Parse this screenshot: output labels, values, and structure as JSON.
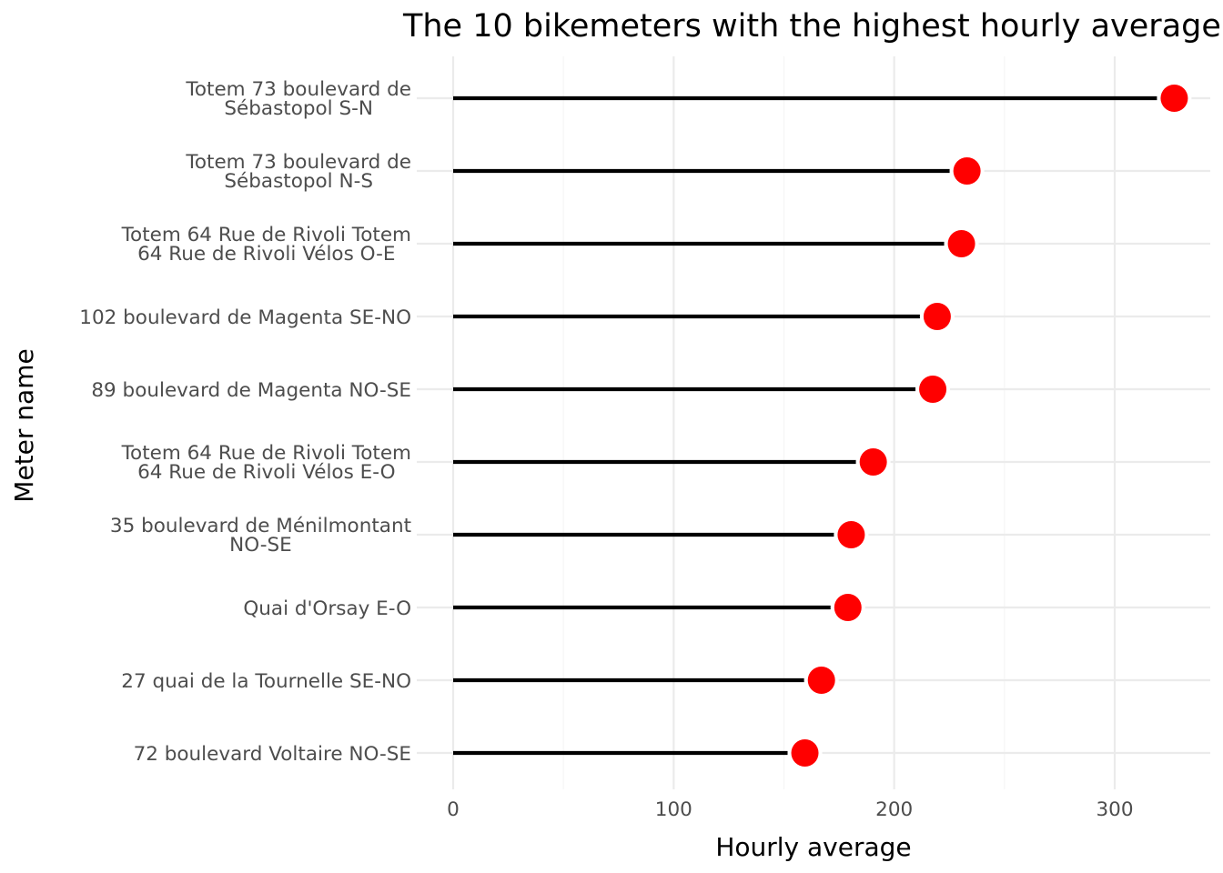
{
  "chart_data": {
    "type": "lollipop",
    "title": "The 10 bikemeters with the highest hourly average",
    "xlabel": "Hourly average",
    "ylabel": "Meter name",
    "xlim": [
      -17,
      343
    ],
    "x_ticks": [
      0,
      100,
      200,
      300
    ],
    "x_minor_ticks": [
      50,
      150,
      250
    ],
    "grid": true,
    "orientation": "horizontal",
    "colors": {
      "stem": "#000000",
      "point": "#ff0000",
      "grid": "#ebebeb",
      "tick_text": "#4d4d4d"
    },
    "categories": [
      [
        "Totem 73 boulevard de",
        "Sébastopol S-N"
      ],
      [
        "Totem 73 boulevard de",
        "Sébastopol N-S"
      ],
      [
        "Totem 64 Rue de Rivoli Totem",
        "64 Rue de Rivoli Vélos O-E"
      ],
      [
        "102 boulevard de Magenta SE-NO"
      ],
      [
        "89 boulevard de Magenta NO-SE"
      ],
      [
        "Totem 64 Rue de Rivoli Totem",
        "64 Rue de Rivoli Vélos E-O"
      ],
      [
        "35 boulevard de Ménilmontant",
        "NO-SE"
      ],
      [
        "Quai d'Orsay E-O"
      ],
      [
        "27 quai de la Tournelle SE-NO"
      ],
      [
        "72 boulevard Voltaire NO-SE"
      ]
    ],
    "values": [
      327,
      233,
      230.5,
      219.5,
      217.5,
      190.5,
      180.5,
      179,
      167,
      159.5
    ]
  }
}
